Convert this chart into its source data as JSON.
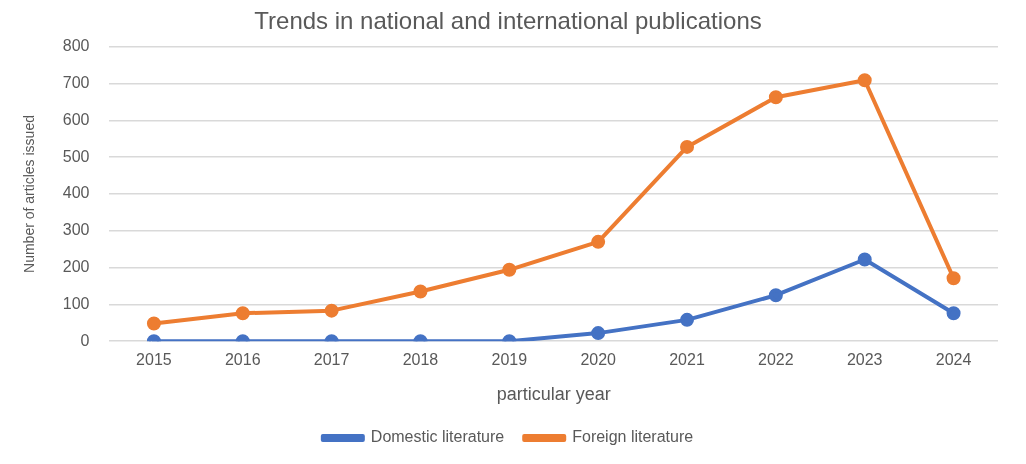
{
  "chart_data": {
    "type": "line",
    "title": "Trends in national and international publications",
    "xlabel": "particular year",
    "ylabel": "Number of articles issued",
    "categories": [
      "2015",
      "2016",
      "2017",
      "2018",
      "2019",
      "2020",
      "2021",
      "2022",
      "2023",
      "2024"
    ],
    "series": [
      {
        "name": "Domestic literature",
        "color": "#4472c4",
        "values": [
          0,
          0,
          0,
          0,
          0,
          22,
          58,
          125,
          222,
          76
        ]
      },
      {
        "name": "Foreign literature",
        "color": "#ed7d31",
        "values": [
          48,
          76,
          83,
          135,
          194,
          270,
          528,
          663,
          709,
          171
        ]
      }
    ],
    "ylim": [
      0,
      800
    ],
    "yticks": [
      0,
      100,
      200,
      300,
      400,
      500,
      600,
      700,
      800
    ],
    "grid": "y",
    "legend": "bottom",
    "marker": "circle",
    "line_style": "solid"
  }
}
